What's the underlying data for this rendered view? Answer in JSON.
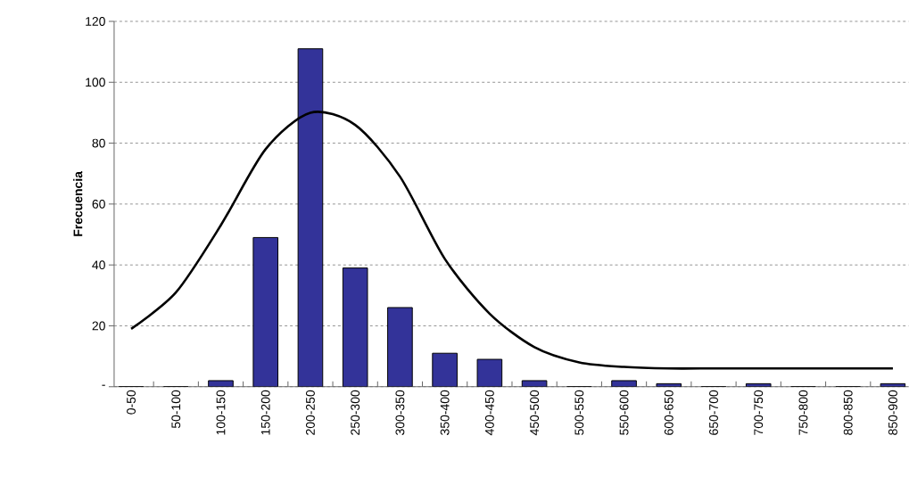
{
  "chart_data": {
    "type": "bar",
    "ylabel": "Frecuencia",
    "categories": [
      "0-50",
      "50-100",
      "100-150",
      "150-200",
      "200-250",
      "250-300",
      "300-350",
      "350-400",
      "400-450",
      "450-500",
      "500-550",
      "550-600",
      "600-650",
      "650-700",
      "700-750",
      "750-800",
      "800-850",
      "850-900"
    ],
    "series": [
      {
        "color": "#333399",
        "values": [
          0,
          0,
          2,
          49,
          111,
          39,
          26,
          11,
          9,
          2,
          0,
          2,
          1,
          0,
          1,
          0,
          0,
          1
        ]
      },
      {
        "type": "line",
        "color": "#000000",
        "values": [
          19,
          31,
          53,
          78,
          90,
          86,
          69,
          42,
          24,
          13,
          8,
          6.5,
          6,
          6,
          6,
          6,
          6,
          6
        ]
      }
    ],
    "ylim": [
      0,
      120
    ],
    "yticks": [
      {
        "value": 0,
        "label": "-"
      },
      20,
      40,
      60,
      80,
      100,
      120
    ],
    "grid": "y"
  }
}
